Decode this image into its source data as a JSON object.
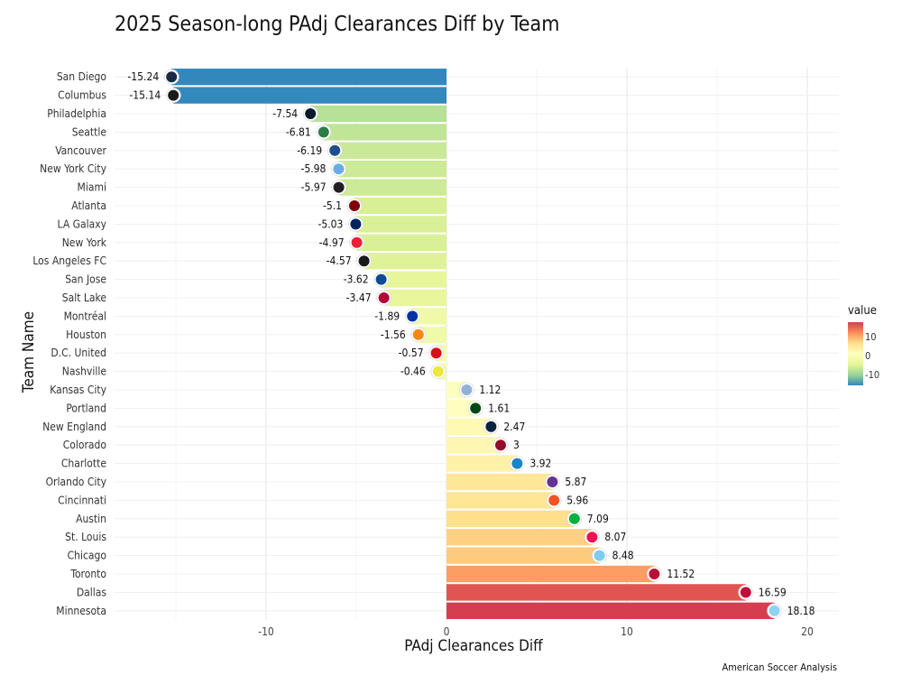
{
  "chart_data": {
    "type": "bar",
    "orientation": "horizontal",
    "title": "2025 Season-long PAdj Clearances Diff by Team",
    "xlabel": "PAdj Clearances Diff",
    "ylabel": "Team Name",
    "caption": "American Soccer Analysis",
    "xlim": [
      -18.5,
      21.5
    ],
    "xticks": [
      -10,
      0,
      10,
      20
    ],
    "grid": true,
    "legend": {
      "title": "value",
      "position": "right",
      "ticks": [
        10,
        0,
        -10
      ],
      "range": [
        -15.24,
        18.18
      ],
      "colors": [
        "#3288bd",
        "#99d594",
        "#e6f598",
        "#ffffbf",
        "#fee08b",
        "#fc8d59",
        "#d53e4f"
      ]
    },
    "categories": [
      "San Diego",
      "Columbus",
      "Philadelphia",
      "Seattle",
      "Vancouver",
      "New York City",
      "Miami",
      "Atlanta",
      "LA Galaxy",
      "New York",
      "Los Angeles FC",
      "San Jose",
      "Salt Lake",
      "Montréal",
      "Houston",
      "D.C. United",
      "Nashville",
      "Kansas City",
      "Portland",
      "New England",
      "Colorado",
      "Charlotte",
      "Orlando City",
      "Cincinnati",
      "Austin",
      "St. Louis",
      "Chicago",
      "Toronto",
      "Dallas",
      "Minnesota"
    ],
    "values": [
      -15.24,
      -15.14,
      -7.54,
      -6.81,
      -6.19,
      -5.98,
      -5.97,
      -5.1,
      -5.03,
      -4.97,
      -4.57,
      -3.62,
      -3.47,
      -1.89,
      -1.56,
      -0.57,
      -0.46,
      1.12,
      1.61,
      2.47,
      3,
      3.92,
      5.87,
      5.96,
      7.09,
      8.07,
      8.48,
      11.52,
      16.59,
      18.18
    ],
    "value_labels": [
      "-15.24",
      "-15.14",
      "-7.54",
      "-6.81",
      "-6.19",
      "-5.98",
      "-5.97",
      "-5.1",
      "-5.03",
      "-4.97",
      "-4.57",
      "-3.62",
      "-3.47",
      "-1.89",
      "-1.56",
      "-0.57",
      "-0.46",
      "1.12",
      "1.61",
      "2.47",
      "3",
      "3.92",
      "5.87",
      "5.96",
      "7.09",
      "8.07",
      "8.48",
      "11.52",
      "16.59",
      "18.18"
    ],
    "logo_colors": [
      "#1b2a44",
      "#1a1a1a",
      "#071b2c",
      "#2d7d46",
      "#1f4e8c",
      "#6cace4",
      "#231f20",
      "#80000a",
      "#00245d",
      "#ed1e36",
      "#1a1a1a",
      "#0d4c92",
      "#b30838",
      "#0033a1",
      "#f68712",
      "#d61018",
      "#ece83a",
      "#93b1d7",
      "#004812",
      "#0a2240",
      "#960a2c",
      "#1a85c8",
      "#633492",
      "#f05323",
      "#00b140",
      "#ec1458",
      "#7ccdef",
      "#b81137",
      "#bf0d3e",
      "#8cd2f4"
    ]
  }
}
